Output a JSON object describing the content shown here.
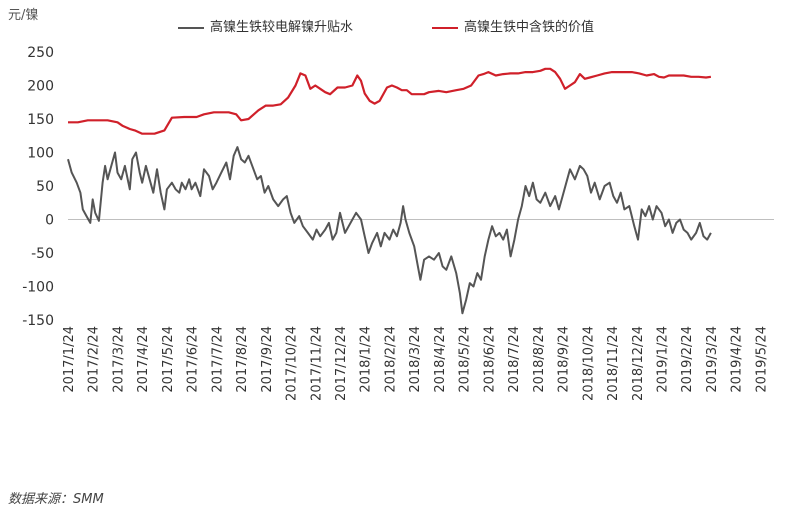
{
  "unit_label": "元/镍",
  "source_text": "数据来源：SMM",
  "chart_data": {
    "type": "line",
    "ylabel": "元/镍",
    "ylim": [
      -150,
      250
    ],
    "yticks": [
      -150,
      -100,
      -50,
      0,
      50,
      100,
      150,
      200,
      250
    ],
    "x_tick_labels": [
      "2017/1/24",
      "2017/2/24",
      "2017/3/24",
      "2017/4/24",
      "2017/5/24",
      "2017/6/24",
      "2017/7/24",
      "2017/8/24",
      "2017/9/24",
      "2017/10/24",
      "2017/11/24",
      "2017/12/24",
      "2018/1/24",
      "2018/2/24",
      "2018/3/24",
      "2018/4/24",
      "2018/5/24",
      "2018/6/24",
      "2018/7/24",
      "2018/8/24",
      "2018/9/24",
      "2018/10/24",
      "2018/11/24",
      "2018/12/24",
      "2019/1/24",
      "2019/2/24",
      "2019/3/24",
      "2019/4/24",
      "2019/5/24"
    ],
    "series": [
      {
        "name": "高镍生铁较电解镍升贴水",
        "color": "#555555",
        "values": [
          [
            0,
            90
          ],
          [
            0.15,
            70
          ],
          [
            0.35,
            55
          ],
          [
            0.5,
            40
          ],
          [
            0.6,
            15
          ],
          [
            0.75,
            5
          ],
          [
            0.9,
            -5
          ],
          [
            1.0,
            30
          ],
          [
            1.1,
            10
          ],
          [
            1.25,
            -2
          ],
          [
            1.4,
            55
          ],
          [
            1.5,
            80
          ],
          [
            1.6,
            60
          ],
          [
            1.75,
            80
          ],
          [
            1.9,
            100
          ],
          [
            2.0,
            70
          ],
          [
            2.15,
            60
          ],
          [
            2.3,
            80
          ],
          [
            2.5,
            45
          ],
          [
            2.6,
            90
          ],
          [
            2.75,
            100
          ],
          [
            2.9,
            70
          ],
          [
            3.0,
            55
          ],
          [
            3.15,
            80
          ],
          [
            3.3,
            60
          ],
          [
            3.45,
            40
          ],
          [
            3.6,
            75
          ],
          [
            3.75,
            40
          ],
          [
            3.9,
            15
          ],
          [
            4.0,
            45
          ],
          [
            4.2,
            55
          ],
          [
            4.35,
            45
          ],
          [
            4.5,
            40
          ],
          [
            4.6,
            55
          ],
          [
            4.75,
            45
          ],
          [
            4.9,
            60
          ],
          [
            5.0,
            45
          ],
          [
            5.15,
            55
          ],
          [
            5.35,
            35
          ],
          [
            5.5,
            75
          ],
          [
            5.7,
            65
          ],
          [
            5.85,
            45
          ],
          [
            6.0,
            55
          ],
          [
            6.2,
            70
          ],
          [
            6.4,
            85
          ],
          [
            6.55,
            60
          ],
          [
            6.7,
            95
          ],
          [
            6.85,
            108
          ],
          [
            7.0,
            90
          ],
          [
            7.15,
            85
          ],
          [
            7.3,
            95
          ],
          [
            7.5,
            75
          ],
          [
            7.65,
            60
          ],
          [
            7.8,
            65
          ],
          [
            7.95,
            40
          ],
          [
            8.1,
            50
          ],
          [
            8.3,
            30
          ],
          [
            8.5,
            20
          ],
          [
            8.7,
            30
          ],
          [
            8.85,
            35
          ],
          [
            9.0,
            10
          ],
          [
            9.15,
            -5
          ],
          [
            9.35,
            5
          ],
          [
            9.5,
            -10
          ],
          [
            9.7,
            -20
          ],
          [
            9.9,
            -30
          ],
          [
            10.05,
            -15
          ],
          [
            10.2,
            -25
          ],
          [
            10.4,
            -15
          ],
          [
            10.55,
            -5
          ],
          [
            10.7,
            -30
          ],
          [
            10.85,
            -20
          ],
          [
            11.0,
            10
          ],
          [
            11.2,
            -20
          ],
          [
            11.35,
            -10
          ],
          [
            11.5,
            0
          ],
          [
            11.65,
            10
          ],
          [
            11.85,
            0
          ],
          [
            12.0,
            -25
          ],
          [
            12.15,
            -50
          ],
          [
            12.3,
            -35
          ],
          [
            12.5,
            -20
          ],
          [
            12.65,
            -40
          ],
          [
            12.8,
            -20
          ],
          [
            13.0,
            -30
          ],
          [
            13.15,
            -15
          ],
          [
            13.3,
            -25
          ],
          [
            13.45,
            -5
          ],
          [
            13.55,
            20
          ],
          [
            13.65,
            0
          ],
          [
            13.8,
            -20
          ],
          [
            14.0,
            -40
          ],
          [
            14.15,
            -70
          ],
          [
            14.25,
            -90
          ],
          [
            14.4,
            -60
          ],
          [
            14.6,
            -55
          ],
          [
            14.8,
            -60
          ],
          [
            15.0,
            -50
          ],
          [
            15.15,
            -70
          ],
          [
            15.3,
            -75
          ],
          [
            15.5,
            -55
          ],
          [
            15.7,
            -80
          ],
          [
            15.85,
            -110
          ],
          [
            15.95,
            -140
          ],
          [
            16.1,
            -120
          ],
          [
            16.25,
            -95
          ],
          [
            16.4,
            -100
          ],
          [
            16.55,
            -80
          ],
          [
            16.7,
            -90
          ],
          [
            16.85,
            -55
          ],
          [
            17.0,
            -30
          ],
          [
            17.15,
            -10
          ],
          [
            17.3,
            -25
          ],
          [
            17.45,
            -20
          ],
          [
            17.6,
            -30
          ],
          [
            17.75,
            -15
          ],
          [
            17.9,
            -55
          ],
          [
            18.05,
            -30
          ],
          [
            18.2,
            0
          ],
          [
            18.35,
            20
          ],
          [
            18.5,
            50
          ],
          [
            18.65,
            35
          ],
          [
            18.8,
            55
          ],
          [
            18.95,
            30
          ],
          [
            19.1,
            25
          ],
          [
            19.3,
            40
          ],
          [
            19.5,
            20
          ],
          [
            19.7,
            35
          ],
          [
            19.85,
            15
          ],
          [
            20.0,
            35
          ],
          [
            20.15,
            55
          ],
          [
            20.3,
            75
          ],
          [
            20.5,
            60
          ],
          [
            20.7,
            80
          ],
          [
            20.85,
            75
          ],
          [
            21.0,
            65
          ],
          [
            21.15,
            40
          ],
          [
            21.3,
            55
          ],
          [
            21.5,
            30
          ],
          [
            21.7,
            50
          ],
          [
            21.9,
            55
          ],
          [
            22.05,
            35
          ],
          [
            22.2,
            25
          ],
          [
            22.35,
            40
          ],
          [
            22.5,
            15
          ],
          [
            22.7,
            20
          ],
          [
            22.9,
            -10
          ],
          [
            23.05,
            -30
          ],
          [
            23.2,
            15
          ],
          [
            23.35,
            5
          ],
          [
            23.5,
            20
          ],
          [
            23.65,
            0
          ],
          [
            23.8,
            20
          ],
          [
            24.0,
            10
          ],
          [
            24.15,
            -10
          ],
          [
            24.3,
            0
          ],
          [
            24.45,
            -20
          ],
          [
            24.6,
            -5
          ],
          [
            24.75,
            0
          ],
          [
            24.9,
            -15
          ],
          [
            25.05,
            -20
          ],
          [
            25.2,
            -30
          ],
          [
            25.4,
            -20
          ],
          [
            25.55,
            -5
          ],
          [
            25.7,
            -25
          ],
          [
            25.85,
            -30
          ],
          [
            26.0,
            -20
          ]
        ]
      },
      {
        "name": "高镍生铁中含铁的价值",
        "color": "#d0202a",
        "values": [
          [
            0,
            145
          ],
          [
            0.4,
            145
          ],
          [
            0.8,
            148
          ],
          [
            1.6,
            148
          ],
          [
            2.0,
            145
          ],
          [
            2.2,
            140
          ],
          [
            2.5,
            135
          ],
          [
            2.7,
            133
          ],
          [
            3.0,
            128
          ],
          [
            3.5,
            128
          ],
          [
            3.9,
            133
          ],
          [
            4.2,
            152
          ],
          [
            4.7,
            153
          ],
          [
            5.2,
            153
          ],
          [
            5.5,
            157
          ],
          [
            5.9,
            160
          ],
          [
            6.2,
            160
          ],
          [
            6.5,
            160
          ],
          [
            6.8,
            157
          ],
          [
            7.0,
            148
          ],
          [
            7.3,
            150
          ],
          [
            7.7,
            163
          ],
          [
            8.0,
            170
          ],
          [
            8.3,
            170
          ],
          [
            8.6,
            172
          ],
          [
            8.9,
            182
          ],
          [
            9.2,
            200
          ],
          [
            9.4,
            218
          ],
          [
            9.6,
            215
          ],
          [
            9.8,
            195
          ],
          [
            10.0,
            200
          ],
          [
            10.2,
            195
          ],
          [
            10.4,
            190
          ],
          [
            10.6,
            187
          ],
          [
            10.9,
            197
          ],
          [
            11.2,
            197
          ],
          [
            11.5,
            200
          ],
          [
            11.7,
            215
          ],
          [
            11.85,
            207
          ],
          [
            12.0,
            188
          ],
          [
            12.2,
            177
          ],
          [
            12.4,
            173
          ],
          [
            12.6,
            177
          ],
          [
            12.9,
            197
          ],
          [
            13.1,
            200
          ],
          [
            13.3,
            197
          ],
          [
            13.5,
            193
          ],
          [
            13.7,
            193
          ],
          [
            13.9,
            187
          ],
          [
            14.2,
            187
          ],
          [
            14.4,
            187
          ],
          [
            14.6,
            190
          ],
          [
            15.0,
            192
          ],
          [
            15.3,
            190
          ],
          [
            15.7,
            193
          ],
          [
            16.0,
            195
          ],
          [
            16.3,
            200
          ],
          [
            16.6,
            215
          ],
          [
            16.8,
            217
          ],
          [
            17.0,
            220
          ],
          [
            17.3,
            215
          ],
          [
            17.6,
            217
          ],
          [
            17.9,
            218
          ],
          [
            18.2,
            218
          ],
          [
            18.5,
            220
          ],
          [
            18.8,
            220
          ],
          [
            19.1,
            222
          ],
          [
            19.3,
            225
          ],
          [
            19.5,
            225
          ],
          [
            19.7,
            220
          ],
          [
            19.9,
            210
          ],
          [
            20.1,
            195
          ],
          [
            20.3,
            200
          ],
          [
            20.5,
            205
          ],
          [
            20.7,
            217
          ],
          [
            20.9,
            210
          ],
          [
            21.1,
            212
          ],
          [
            21.4,
            215
          ],
          [
            21.7,
            218
          ],
          [
            22.0,
            220
          ],
          [
            22.4,
            220
          ],
          [
            22.8,
            220
          ],
          [
            23.1,
            218
          ],
          [
            23.4,
            215
          ],
          [
            23.7,
            217
          ],
          [
            23.9,
            213
          ],
          [
            24.1,
            212
          ],
          [
            24.3,
            215
          ],
          [
            24.6,
            215
          ],
          [
            24.9,
            215
          ],
          [
            25.2,
            213
          ],
          [
            25.5,
            213
          ],
          [
            25.8,
            212
          ],
          [
            26.0,
            213
          ]
        ]
      }
    ]
  }
}
